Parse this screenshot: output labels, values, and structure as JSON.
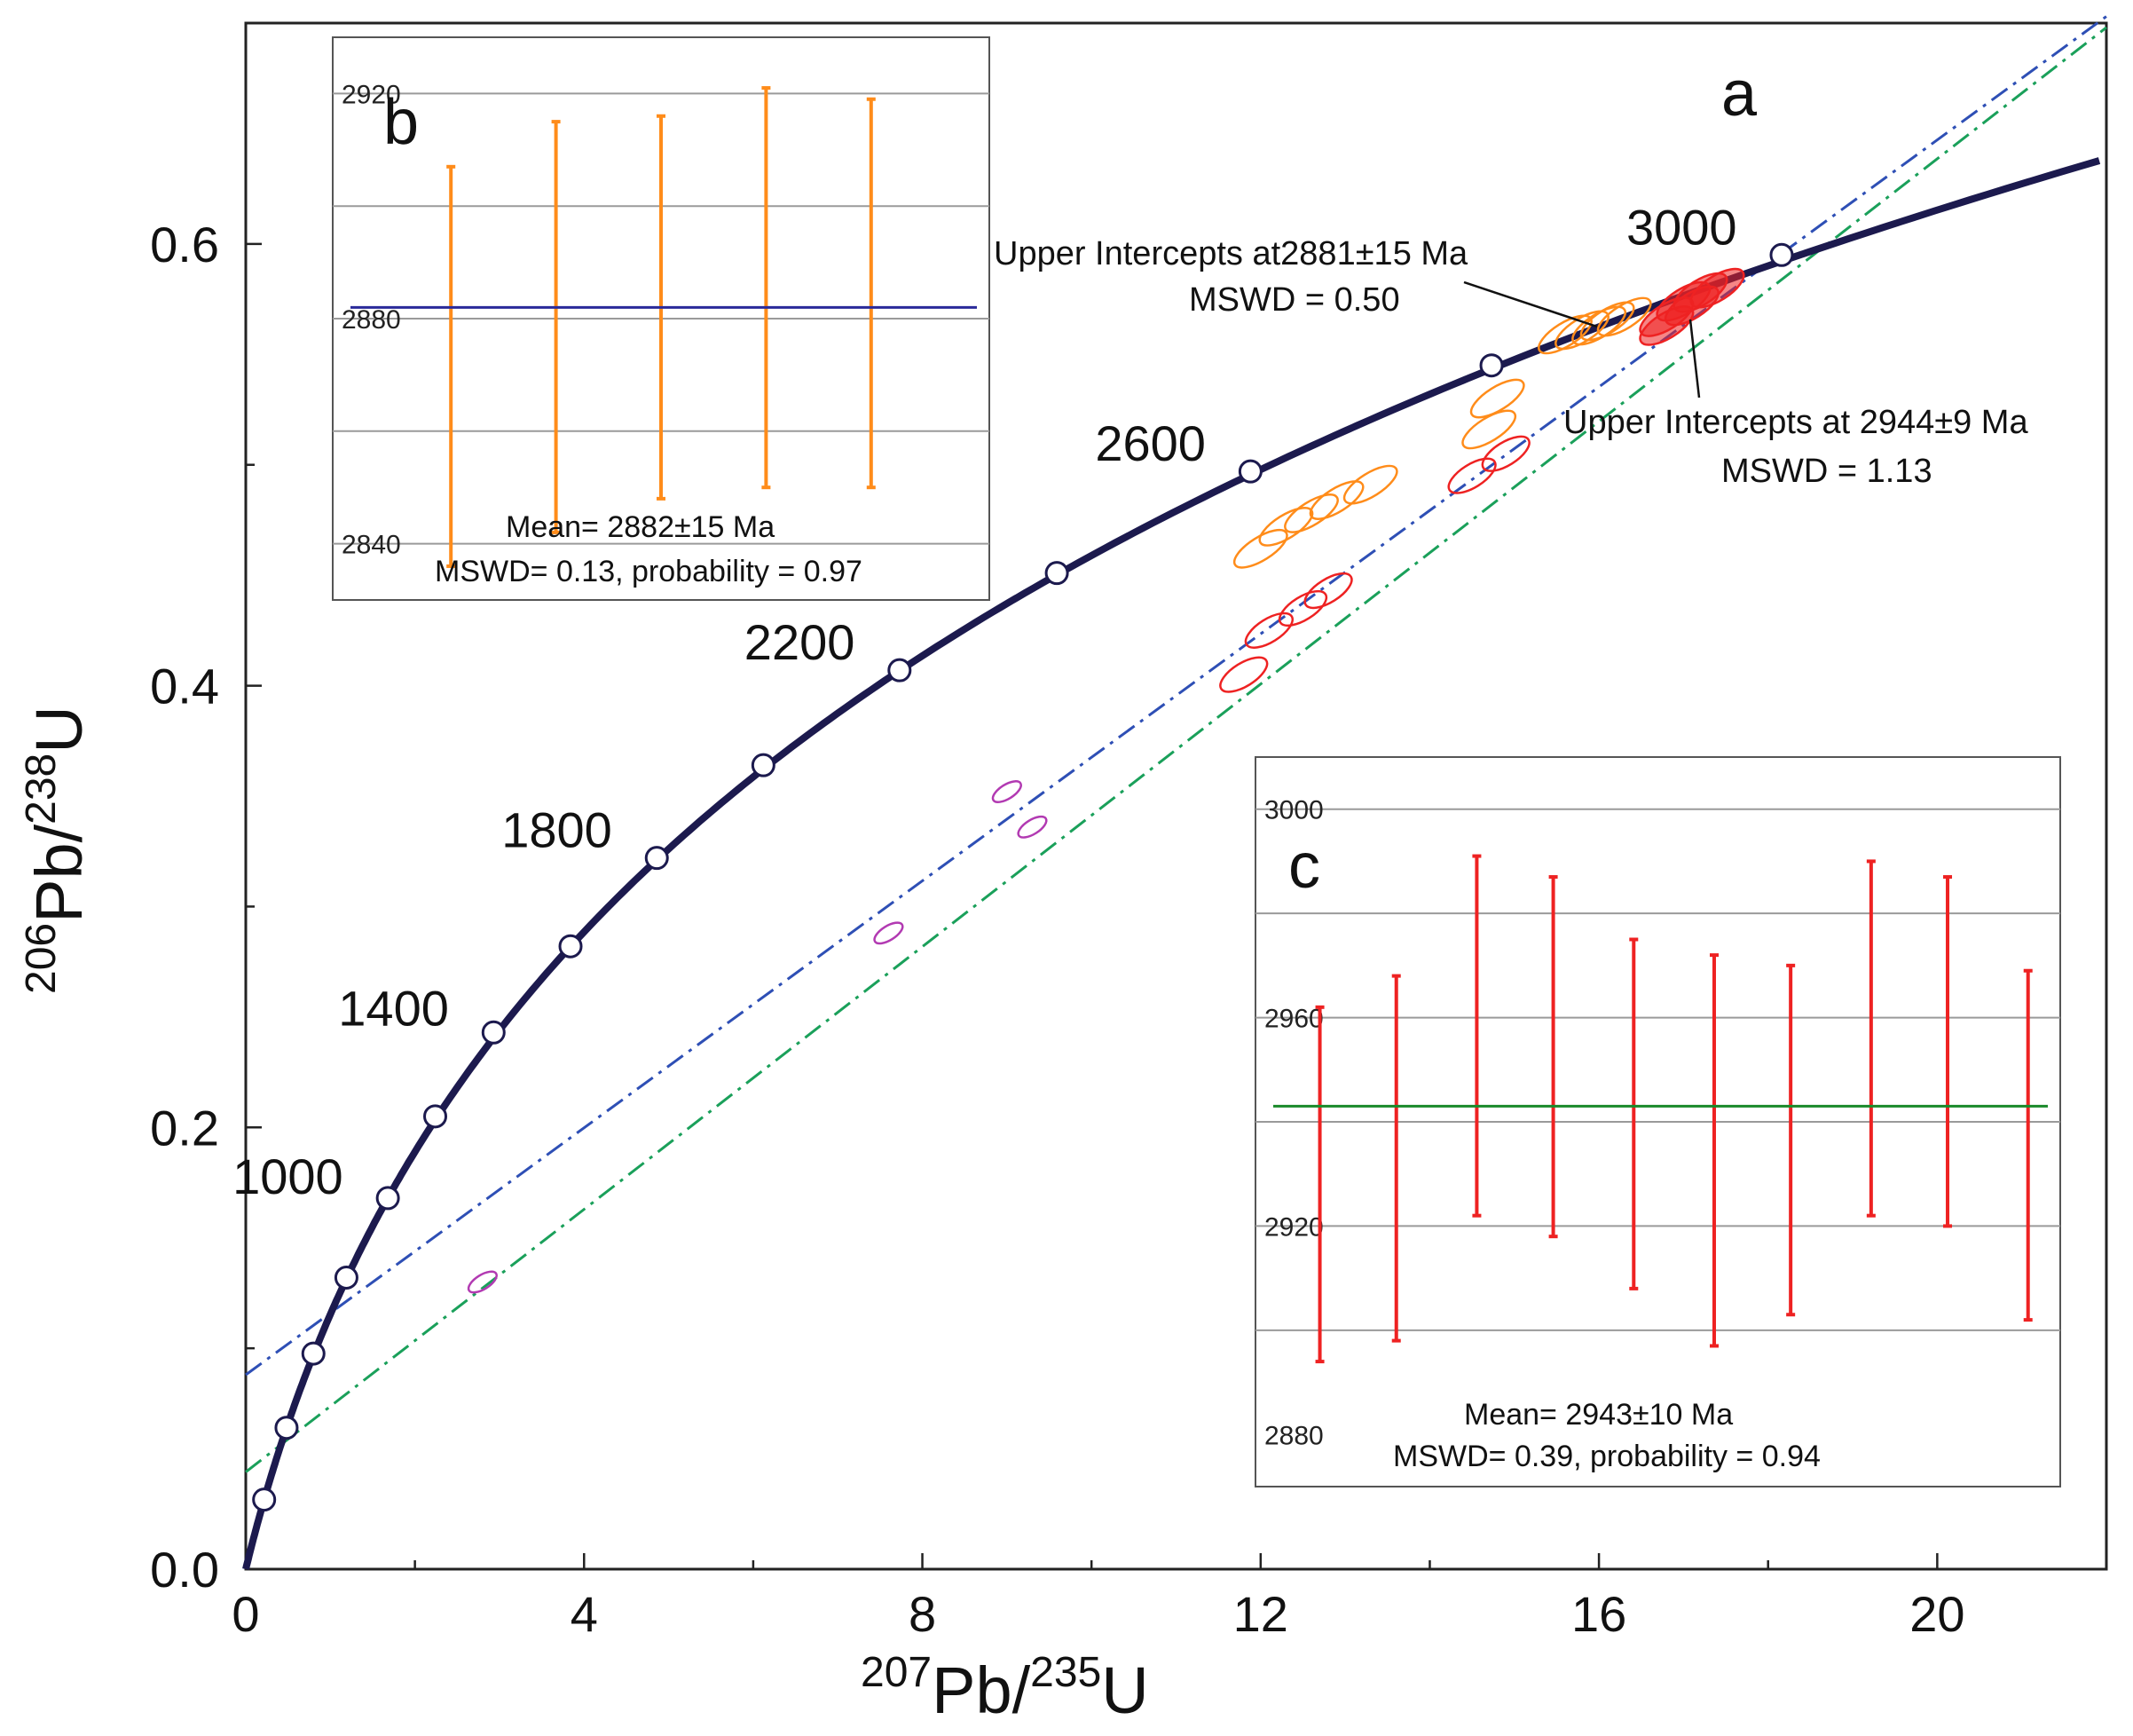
{
  "chart_data": [
    {
      "panel": "a",
      "type": "scatter",
      "title": "",
      "xlabel": {
        "sup1": "207",
        "base1": "Pb/",
        "sup2": "235",
        "base2": "U"
      },
      "ylabel": {
        "sup1": "206",
        "base1": "Pb/",
        "sup2": "238",
        "base2": "U"
      },
      "xlim": [
        0,
        22
      ],
      "ylim": [
        0,
        0.7
      ],
      "x_ticks": [
        0,
        4,
        8,
        12,
        16,
        20
      ],
      "x_tick_labels": [
        "0",
        "4",
        "8",
        "12",
        "16",
        "20"
      ],
      "y_ticks": [
        0.0,
        0.2,
        0.4,
        0.6
      ],
      "y_tick_labels": [
        "0.0",
        "0.2",
        "0.4",
        "0.6"
      ],
      "concordia_points": [
        {
          "age": 200,
          "x": 0.217,
          "y": 0.0315
        },
        {
          "age": 400,
          "x": 0.482,
          "y": 0.064
        },
        {
          "age": 600,
          "x": 0.8,
          "y": 0.0976
        },
        {
          "age": 800,
          "x": 1.19,
          "y": 0.132
        },
        {
          "age": 1000,
          "x": 1.68,
          "y": 0.168
        },
        {
          "age": 1200,
          "x": 2.24,
          "y": 0.205
        },
        {
          "age": 1400,
          "x": 2.93,
          "y": 0.243
        },
        {
          "age": 1600,
          "x": 3.84,
          "y": 0.282
        },
        {
          "age": 1800,
          "x": 4.86,
          "y": 0.322
        },
        {
          "age": 2000,
          "x": 6.12,
          "y": 0.364
        },
        {
          "age": 2200,
          "x": 7.73,
          "y": 0.407
        },
        {
          "age": 2400,
          "x": 9.59,
          "y": 0.451
        },
        {
          "age": 2600,
          "x": 11.88,
          "y": 0.497
        },
        {
          "age": 2800,
          "x": 14.73,
          "y": 0.545
        },
        {
          "age": 3000,
          "x": 18.16,
          "y": 0.595
        }
      ],
      "age_labels": [
        "1000",
        "1400",
        "1800",
        "2200",
        "2600",
        "3000"
      ],
      "discordia_lines": [
        {
          "name": "upper intercept 2881 Ma",
          "color": "#2e4fb5",
          "style": "dash-dot",
          "from": [
            0,
            0.088
          ],
          "to": [
            22,
            0.703
          ]
        },
        {
          "name": "upper intercept 2944 Ma",
          "color": "#1aa05a",
          "style": "dash-dot",
          "from": [
            0,
            0.044
          ],
          "to": [
            22,
            0.698
          ]
        }
      ],
      "ellipses_orange": [
        [
          16.0,
          0.563
        ],
        [
          15.8,
          0.561
        ],
        [
          16.3,
          0.567
        ],
        [
          16.1,
          0.565
        ],
        [
          15.6,
          0.559
        ],
        [
          14.8,
          0.53
        ],
        [
          14.7,
          0.516
        ],
        [
          13.3,
          0.491
        ],
        [
          12.9,
          0.484
        ],
        [
          12.6,
          0.478
        ],
        [
          12.3,
          0.472
        ],
        [
          12.0,
          0.462
        ]
      ],
      "ellipses_red": [
        [
          17.2,
          0.578
        ],
        [
          17.0,
          0.574
        ],
        [
          16.8,
          0.567
        ],
        [
          17.4,
          0.58
        ],
        [
          17.1,
          0.572
        ],
        [
          16.8,
          0.563
        ],
        [
          14.9,
          0.505
        ],
        [
          14.5,
          0.495
        ],
        [
          12.8,
          0.443
        ],
        [
          12.5,
          0.435
        ],
        [
          12.1,
          0.425
        ],
        [
          11.8,
          0.405
        ]
      ],
      "ellipses_magenta": [
        [
          9.0,
          0.352
        ],
        [
          9.3,
          0.336
        ],
        [
          7.6,
          0.288
        ],
        [
          2.8,
          0.13
        ]
      ],
      "annotations": [
        {
          "line1": "Upper Intercepts at2881±15 Ma",
          "line2": "MSWD = 0.50"
        },
        {
          "line1": "Upper Intercepts at 2944±9 Ma",
          "line2": "MSWD = 1.13"
        }
      ],
      "panel_label": "a"
    },
    {
      "panel": "b",
      "type": "errorbar",
      "ylim": [
        2830,
        2930
      ],
      "y_ticks": [
        2840,
        2880,
        2920
      ],
      "y_tick_labels": [
        "2840",
        "2880",
        "2920"
      ],
      "gridlines": [
        2840,
        2860,
        2880,
        2900,
        2920
      ],
      "series_color": "#ff8c1a",
      "mean_line_color": "#2a2a9a",
      "mean": 2882,
      "bars": [
        {
          "low": 2836,
          "high": 2907
        },
        {
          "low": 2842,
          "high": 2915
        },
        {
          "low": 2848,
          "high": 2916
        },
        {
          "low": 2850,
          "high": 2921
        },
        {
          "low": 2850,
          "high": 2919
        }
      ],
      "stat_line1": "Mean= 2882±15 Ma",
      "stat_line2": "MSWD= 0.13, probability = 0.97",
      "panel_label": "b"
    },
    {
      "panel": "c",
      "type": "errorbar",
      "ylim": [
        2870,
        3010
      ],
      "y_ticks": [
        2880,
        2920,
        2960,
        3000
      ],
      "y_tick_labels": [
        "2880",
        "2920",
        "2960",
        "3000"
      ],
      "gridlines": [
        2900,
        2920,
        2940,
        2960,
        2980,
        3000
      ],
      "series_color": "#ee2222",
      "mean_line_color": "#1a8a2a",
      "mean": 2943,
      "bars": [
        {
          "low": 2894,
          "high": 2962
        },
        {
          "low": 2898,
          "high": 2968
        },
        {
          "low": 2922,
          "high": 2991
        },
        {
          "low": 2918,
          "high": 2987
        },
        {
          "low": 2908,
          "high": 2975
        },
        {
          "low": 2897,
          "high": 2972
        },
        {
          "low": 2903,
          "high": 2970
        },
        {
          "low": 2922,
          "high": 2990
        },
        {
          "low": 2920,
          "high": 2987
        },
        {
          "low": 2902,
          "high": 2969
        }
      ],
      "stat_line1": "Mean= 2943±10  Ma",
      "stat_line2": "MSWD= 0.39, probability = 0.94",
      "panel_label": "c"
    }
  ]
}
